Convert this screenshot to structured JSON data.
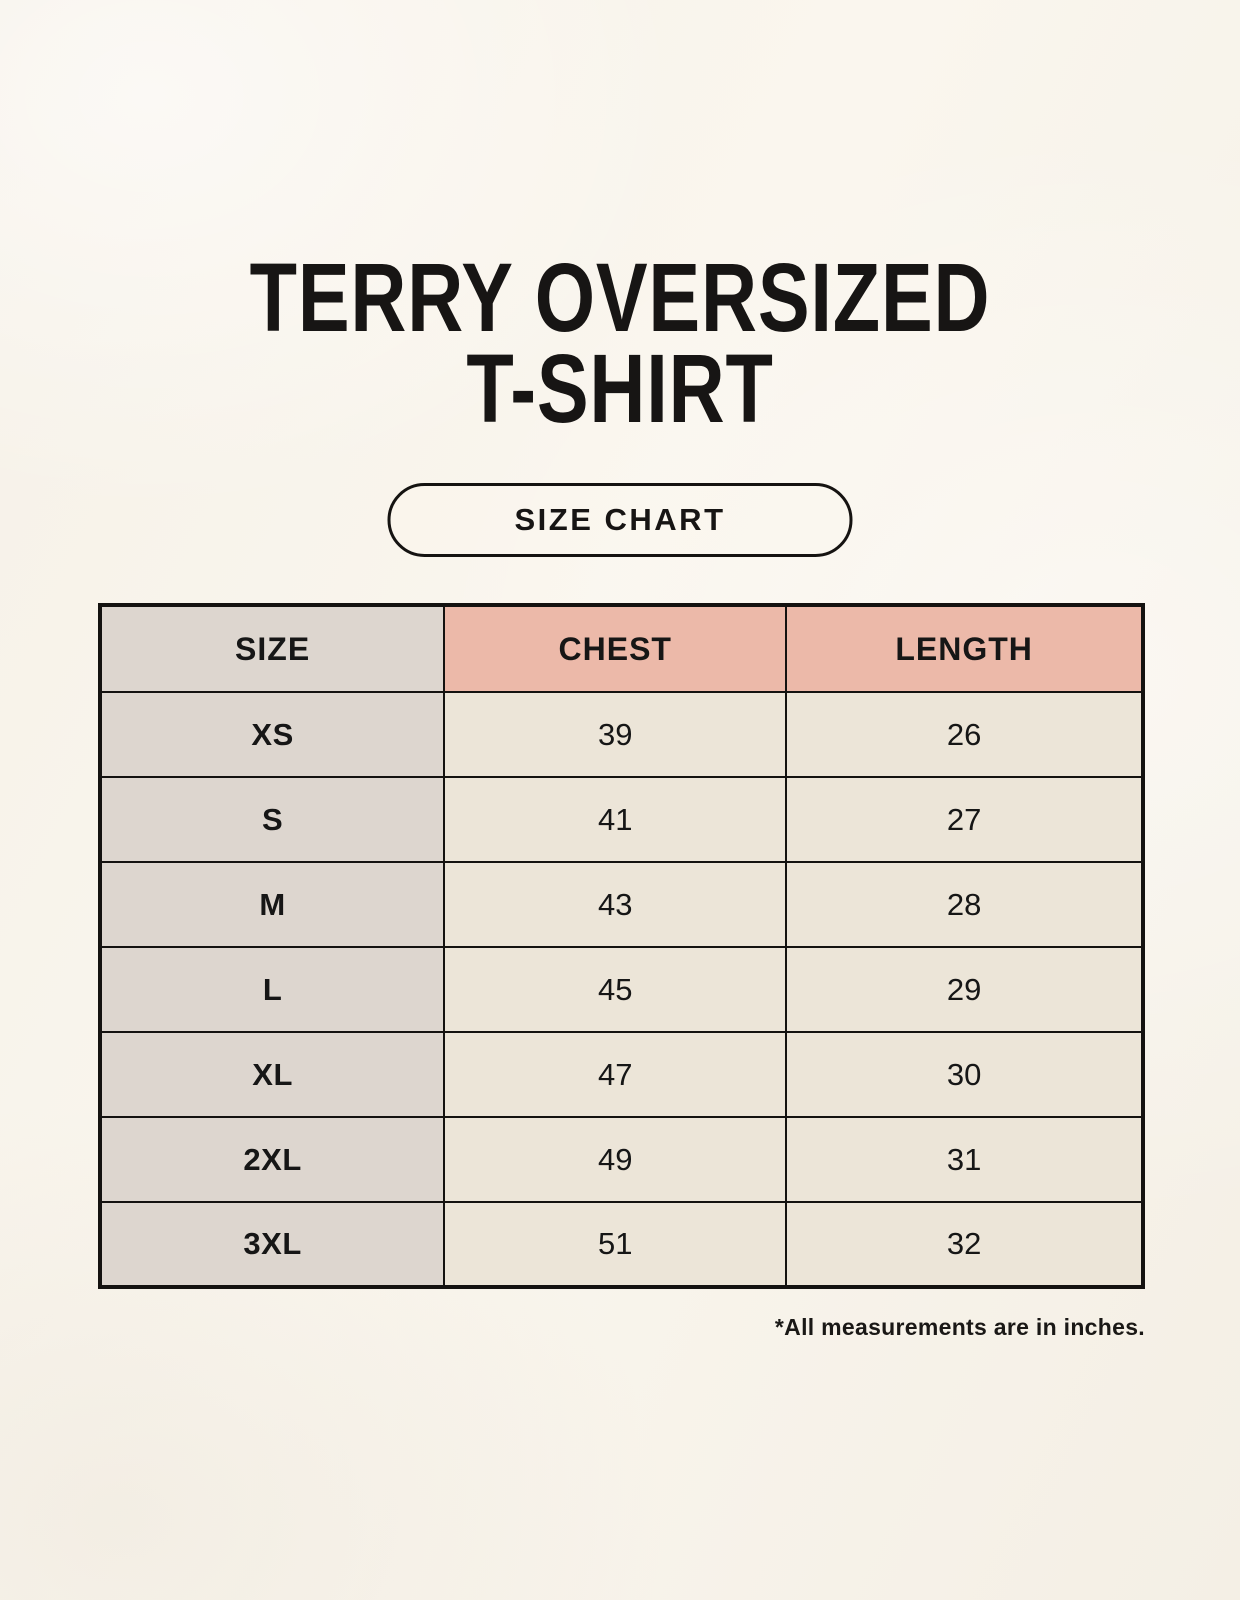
{
  "header": {
    "title_line1": "TERRY OVERSIZED",
    "title_line2": "T-SHIRT",
    "size_chart_label": "SIZE CHART"
  },
  "table": {
    "columns": [
      "SIZE",
      "CHEST",
      "LENGTH"
    ],
    "rows": [
      {
        "size": "XS",
        "chest": "39",
        "length": "26"
      },
      {
        "size": "S",
        "chest": "41",
        "length": "27"
      },
      {
        "size": "M",
        "chest": "43",
        "length": "28"
      },
      {
        "size": "L",
        "chest": "45",
        "length": "29"
      },
      {
        "size": "XL",
        "chest": "47",
        "length": "30"
      },
      {
        "size": "2XL",
        "chest": "49",
        "length": "31"
      },
      {
        "size": "3XL",
        "chest": "51",
        "length": "32"
      }
    ],
    "footnote": "*All measurements are in inches."
  },
  "colors": {
    "background": "#f8f4ec",
    "header_accent": "#ecb9a9",
    "size_column": "#ddd6cf",
    "data_cell": "#ece5d8",
    "border": "#141210",
    "text": "#161616"
  },
  "chart_data": {
    "type": "table",
    "title": "TERRY OVERSIZED T-SHIRT",
    "subtitle": "SIZE CHART",
    "columns": [
      "SIZE",
      "CHEST",
      "LENGTH"
    ],
    "rows": [
      [
        "XS",
        39,
        26
      ],
      [
        "S",
        41,
        27
      ],
      [
        "M",
        43,
        28
      ],
      [
        "L",
        45,
        29
      ],
      [
        "XL",
        47,
        30
      ],
      [
        "2XL",
        49,
        31
      ],
      [
        "3XL",
        51,
        32
      ]
    ],
    "units": "inches",
    "note": "*All measurements are in inches."
  }
}
